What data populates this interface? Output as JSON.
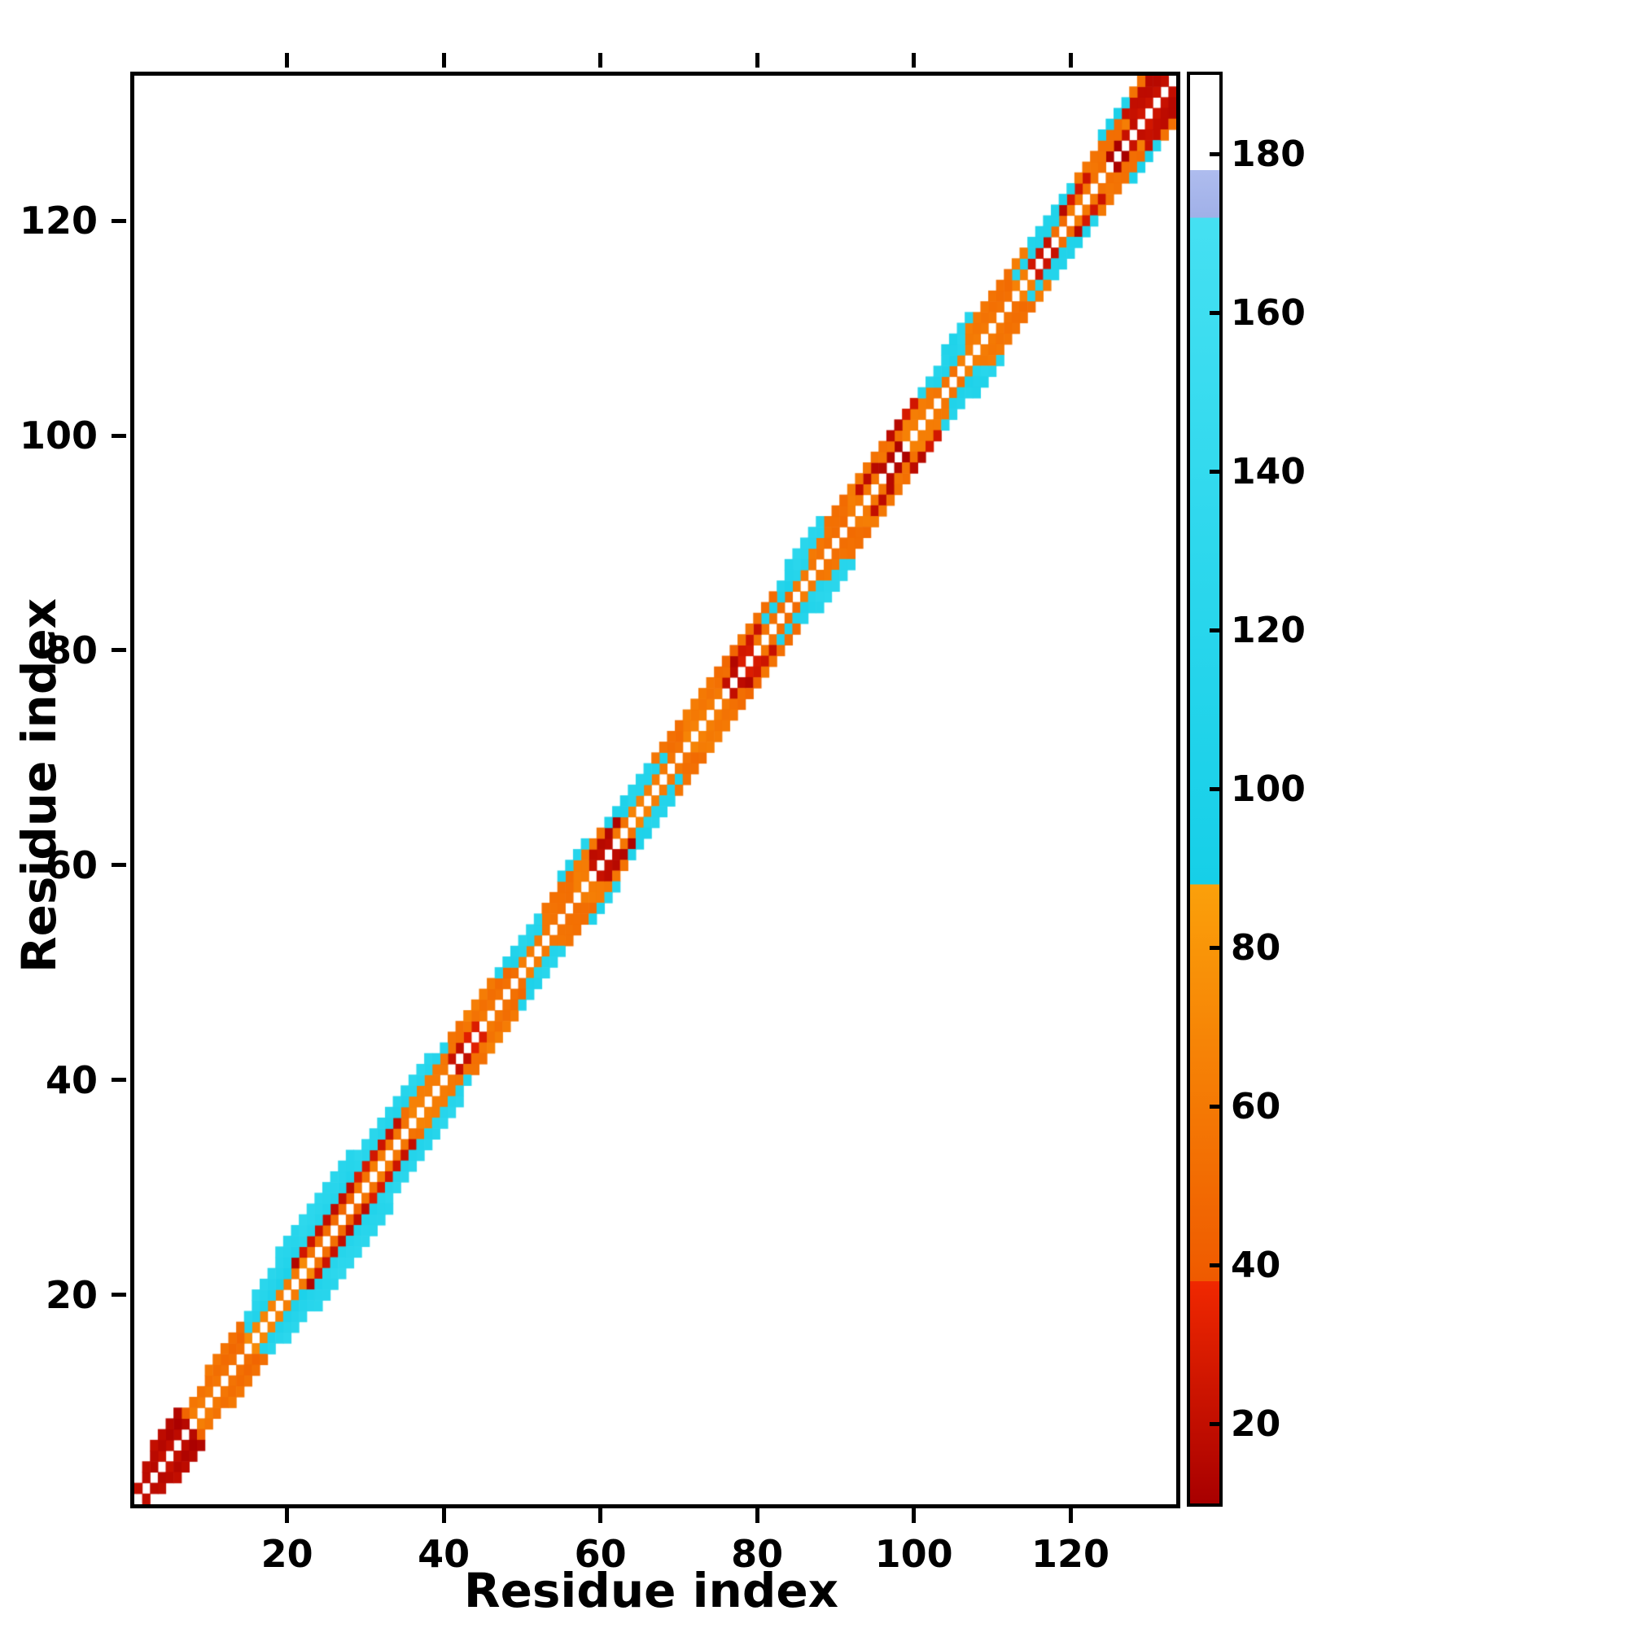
{
  "figure": {
    "background": "#ffffff"
  },
  "chart_data": {
    "type": "heatmap",
    "title": "",
    "xlabel": "Residue index",
    "ylabel": "Residue index",
    "n_residues": 133,
    "x_range": [
      1,
      133
    ],
    "y_range": [
      1,
      133
    ],
    "x_ticks": [
      20,
      40,
      60,
      80,
      100,
      120
    ],
    "y_ticks": [
      20,
      40,
      60,
      80,
      100,
      120
    ],
    "grid": false,
    "symmetric": true,
    "colorbar": {
      "min": 10,
      "max": 190,
      "ticks": [
        20,
        40,
        60,
        80,
        100,
        120,
        140,
        160,
        180
      ],
      "stops": [
        {
          "from": 10,
          "to": 38,
          "c1": "#a80000",
          "c2": "#f02800"
        },
        {
          "from": 38,
          "to": 88,
          "c1": "#ef5a00",
          "c2": "#fba00a"
        },
        {
          "from": 88,
          "to": 172,
          "c1": "#16cfe8",
          "c2": "#45e0f2"
        },
        {
          "from": 172,
          "to": 178,
          "c1": "#a0b0e8",
          "c2": "#aebcee"
        },
        {
          "from": 178,
          "to": 190,
          "c1": "#ffffff",
          "c2": "#ffffff"
        }
      ]
    },
    "bands": [
      {
        "offset": 1,
        "segments": [
          [
            1,
            3,
            14
          ],
          [
            4,
            7,
            22
          ],
          [
            8,
            14,
            58
          ],
          [
            15,
            22,
            66
          ],
          [
            23,
            30,
            52
          ],
          [
            31,
            40,
            62
          ],
          [
            41,
            44,
            26
          ],
          [
            45,
            58,
            58
          ],
          [
            59,
            61,
            20
          ],
          [
            62,
            75,
            62
          ],
          [
            76,
            79,
            24
          ],
          [
            80,
            95,
            56
          ],
          [
            96,
            98,
            18
          ],
          [
            99,
            114,
            60
          ],
          [
            115,
            117,
            24
          ],
          [
            118,
            124,
            56
          ],
          [
            125,
            128,
            16
          ],
          [
            129,
            132,
            24
          ]
        ]
      },
      {
        "offset": 2,
        "segments": [
          [
            2,
            6,
            15
          ],
          [
            7,
            14,
            52
          ],
          [
            15,
            20,
            105
          ],
          [
            21,
            26,
            20
          ],
          [
            27,
            34,
            24
          ],
          [
            35,
            42,
            60
          ],
          [
            43,
            48,
            52
          ],
          [
            49,
            52,
            110
          ],
          [
            53,
            58,
            58
          ],
          [
            59,
            62,
            16
          ],
          [
            63,
            68,
            110
          ],
          [
            69,
            76,
            56
          ],
          [
            77,
            80,
            20
          ],
          [
            81,
            86,
            110
          ],
          [
            87,
            92,
            58
          ],
          [
            93,
            95,
            16
          ],
          [
            96,
            102,
            60
          ],
          [
            103,
            106,
            110
          ],
          [
            107,
            112,
            56
          ],
          [
            113,
            118,
            110
          ],
          [
            119,
            122,
            22
          ],
          [
            123,
            127,
            58
          ],
          [
            128,
            131,
            18
          ]
        ]
      },
      {
        "offset": 3,
        "segments": [
          [
            3,
            6,
            18
          ],
          [
            10,
            14,
            58
          ],
          [
            15,
            40,
            115
          ],
          [
            41,
            46,
            60
          ],
          [
            47,
            52,
            115
          ],
          [
            53,
            60,
            56
          ],
          [
            61,
            66,
            110
          ],
          [
            67,
            74,
            58
          ],
          [
            75,
            82,
            52
          ],
          [
            83,
            88,
            118
          ],
          [
            89,
            96,
            56
          ],
          [
            97,
            100,
            22
          ],
          [
            101,
            106,
            115
          ],
          [
            107,
            114,
            58
          ],
          [
            115,
            120,
            110
          ],
          [
            121,
            126,
            56
          ],
          [
            127,
            130,
            16
          ]
        ]
      },
      {
        "offset": 4,
        "segments": [
          [
            16,
            38,
            122
          ],
          [
            55,
            58,
            112
          ],
          [
            84,
            88,
            120
          ],
          [
            104,
            107,
            112
          ],
          [
            124,
            127,
            105
          ],
          [
            128,
            129,
            52
          ]
        ]
      },
      {
        "offset": 5,
        "segments": [
          [
            19,
            28,
            124
          ]
        ]
      }
    ]
  }
}
